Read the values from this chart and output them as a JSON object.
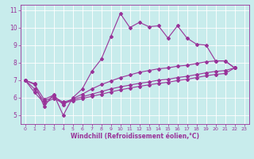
{
  "xlabel": "Windchill (Refroidissement éolien,°C)",
  "bg_color": "#c8ecec",
  "line_color": "#993399",
  "grid_color": "#ffffff",
  "xlim": [
    -0.5,
    23.5
  ],
  "ylim": [
    4.5,
    11.3
  ],
  "yticks": [
    5,
    6,
    7,
    8,
    9,
    10,
    11
  ],
  "xticks": [
    0,
    1,
    2,
    3,
    4,
    5,
    6,
    7,
    8,
    9,
    10,
    11,
    12,
    13,
    14,
    15,
    16,
    17,
    18,
    19,
    20,
    21,
    22,
    23
  ],
  "s0_x": [
    0,
    1,
    2,
    3,
    4,
    5,
    6,
    7,
    8,
    9,
    10,
    11,
    12,
    13,
    14,
    15,
    16,
    17,
    18,
    19,
    20,
    21,
    22
  ],
  "s0_y": [
    7.0,
    6.8,
    5.5,
    6.2,
    5.0,
    6.0,
    6.5,
    7.5,
    8.2,
    9.5,
    10.8,
    10.0,
    10.3,
    10.05,
    10.1,
    9.4,
    10.1,
    9.4,
    9.05,
    9.0,
    8.1,
    8.1,
    7.7
  ],
  "s1_x": [
    0,
    1,
    2,
    3,
    4,
    5,
    6,
    7,
    8,
    9,
    10,
    11,
    12,
    13,
    14,
    15,
    16,
    17,
    18,
    19,
    20,
    21,
    22
  ],
  "s1_y": [
    7.0,
    6.75,
    5.9,
    6.15,
    5.6,
    5.95,
    6.2,
    6.5,
    6.75,
    6.95,
    7.15,
    7.3,
    7.45,
    7.55,
    7.65,
    7.7,
    7.8,
    7.85,
    7.95,
    8.05,
    8.1,
    8.1,
    7.7
  ],
  "s2_x": [
    0,
    1,
    2,
    3,
    4,
    5,
    6,
    7,
    8,
    9,
    10,
    11,
    12,
    13,
    14,
    15,
    16,
    17,
    18,
    19,
    20,
    21,
    22
  ],
  "s2_y": [
    7.0,
    6.5,
    5.8,
    6.05,
    5.75,
    5.9,
    6.05,
    6.2,
    6.35,
    6.5,
    6.62,
    6.72,
    6.82,
    6.9,
    7.0,
    7.05,
    7.15,
    7.22,
    7.32,
    7.42,
    7.5,
    7.55,
    7.7
  ],
  "s3_x": [
    0,
    1,
    2,
    3,
    4,
    5,
    6,
    7,
    8,
    9,
    10,
    11,
    12,
    13,
    14,
    15,
    16,
    17,
    18,
    19,
    20,
    21,
    22
  ],
  "s3_y": [
    7.0,
    6.3,
    5.7,
    5.95,
    5.7,
    5.82,
    5.95,
    6.08,
    6.2,
    6.33,
    6.45,
    6.55,
    6.65,
    6.73,
    6.82,
    6.88,
    6.98,
    7.05,
    7.15,
    7.25,
    7.33,
    7.38,
    7.7
  ],
  "xlabel_fontsize": 5.5,
  "tick_fontsize_x": 4.5,
  "tick_fontsize_y": 5.5,
  "linewidth": 0.8,
  "markersize": 2.0
}
